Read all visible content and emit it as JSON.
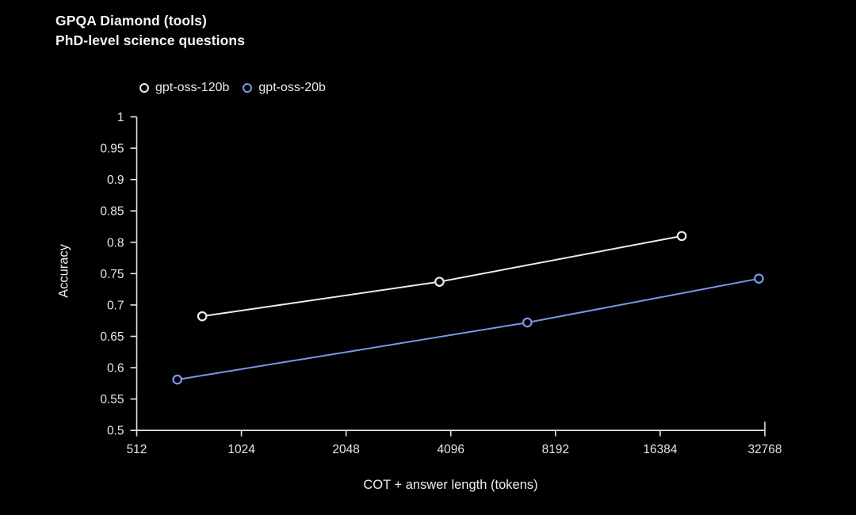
{
  "title": {
    "line1": "GPQA Diamond (tools)",
    "line2": "PhD-level science questions"
  },
  "legend": [
    {
      "label": "gpt-oss-120b",
      "color": "#ececea"
    },
    {
      "label": "gpt-oss-20b",
      "color": "#7b97e8"
    }
  ],
  "chart_data": {
    "type": "line",
    "title": "GPQA Diamond (tools)",
    "subtitle": "PhD-level science questions",
    "xlabel": "COT + answer length (tokens)",
    "ylabel": "Accuracy",
    "x_scale": "log2",
    "xlim": [
      512,
      32768
    ],
    "ylim": [
      0.5,
      1.0
    ],
    "grid": false,
    "legend_position": "top-left",
    "x_ticks": [
      512,
      1024,
      2048,
      4096,
      8192,
      16384,
      32768
    ],
    "x_tick_labels": [
      "512",
      "1024",
      "2048",
      "4096",
      "8192",
      "16384",
      "32768"
    ],
    "y_ticks": [
      0.5,
      0.55,
      0.6,
      0.65,
      0.7,
      0.75,
      0.8,
      0.85,
      0.9,
      0.95,
      1
    ],
    "y_tick_labels": [
      "0.5",
      "0.55",
      "0.6",
      "0.65",
      "0.7",
      "0.75",
      "0.8",
      "0.85",
      "0.9",
      "0.95",
      "1"
    ],
    "series": [
      {
        "name": "gpt-oss-120b",
        "color": "#ececea",
        "marker": "open-circle",
        "points": [
          [
            790,
            0.682
          ],
          [
            3800,
            0.737
          ],
          [
            18900,
            0.81
          ]
        ]
      },
      {
        "name": "gpt-oss-20b",
        "color": "#7b97e8",
        "marker": "open-circle",
        "points": [
          [
            670,
            0.581
          ],
          [
            6800,
            0.672
          ],
          [
            31500,
            0.742
          ]
        ]
      }
    ]
  },
  "colors": {
    "background": "#000000",
    "axis": "#e6e6e4",
    "tick_label": "#e6e6e4",
    "title_text": "#f4f4f2",
    "series_120b": "#ececea",
    "series_20b": "#7b97e8"
  }
}
